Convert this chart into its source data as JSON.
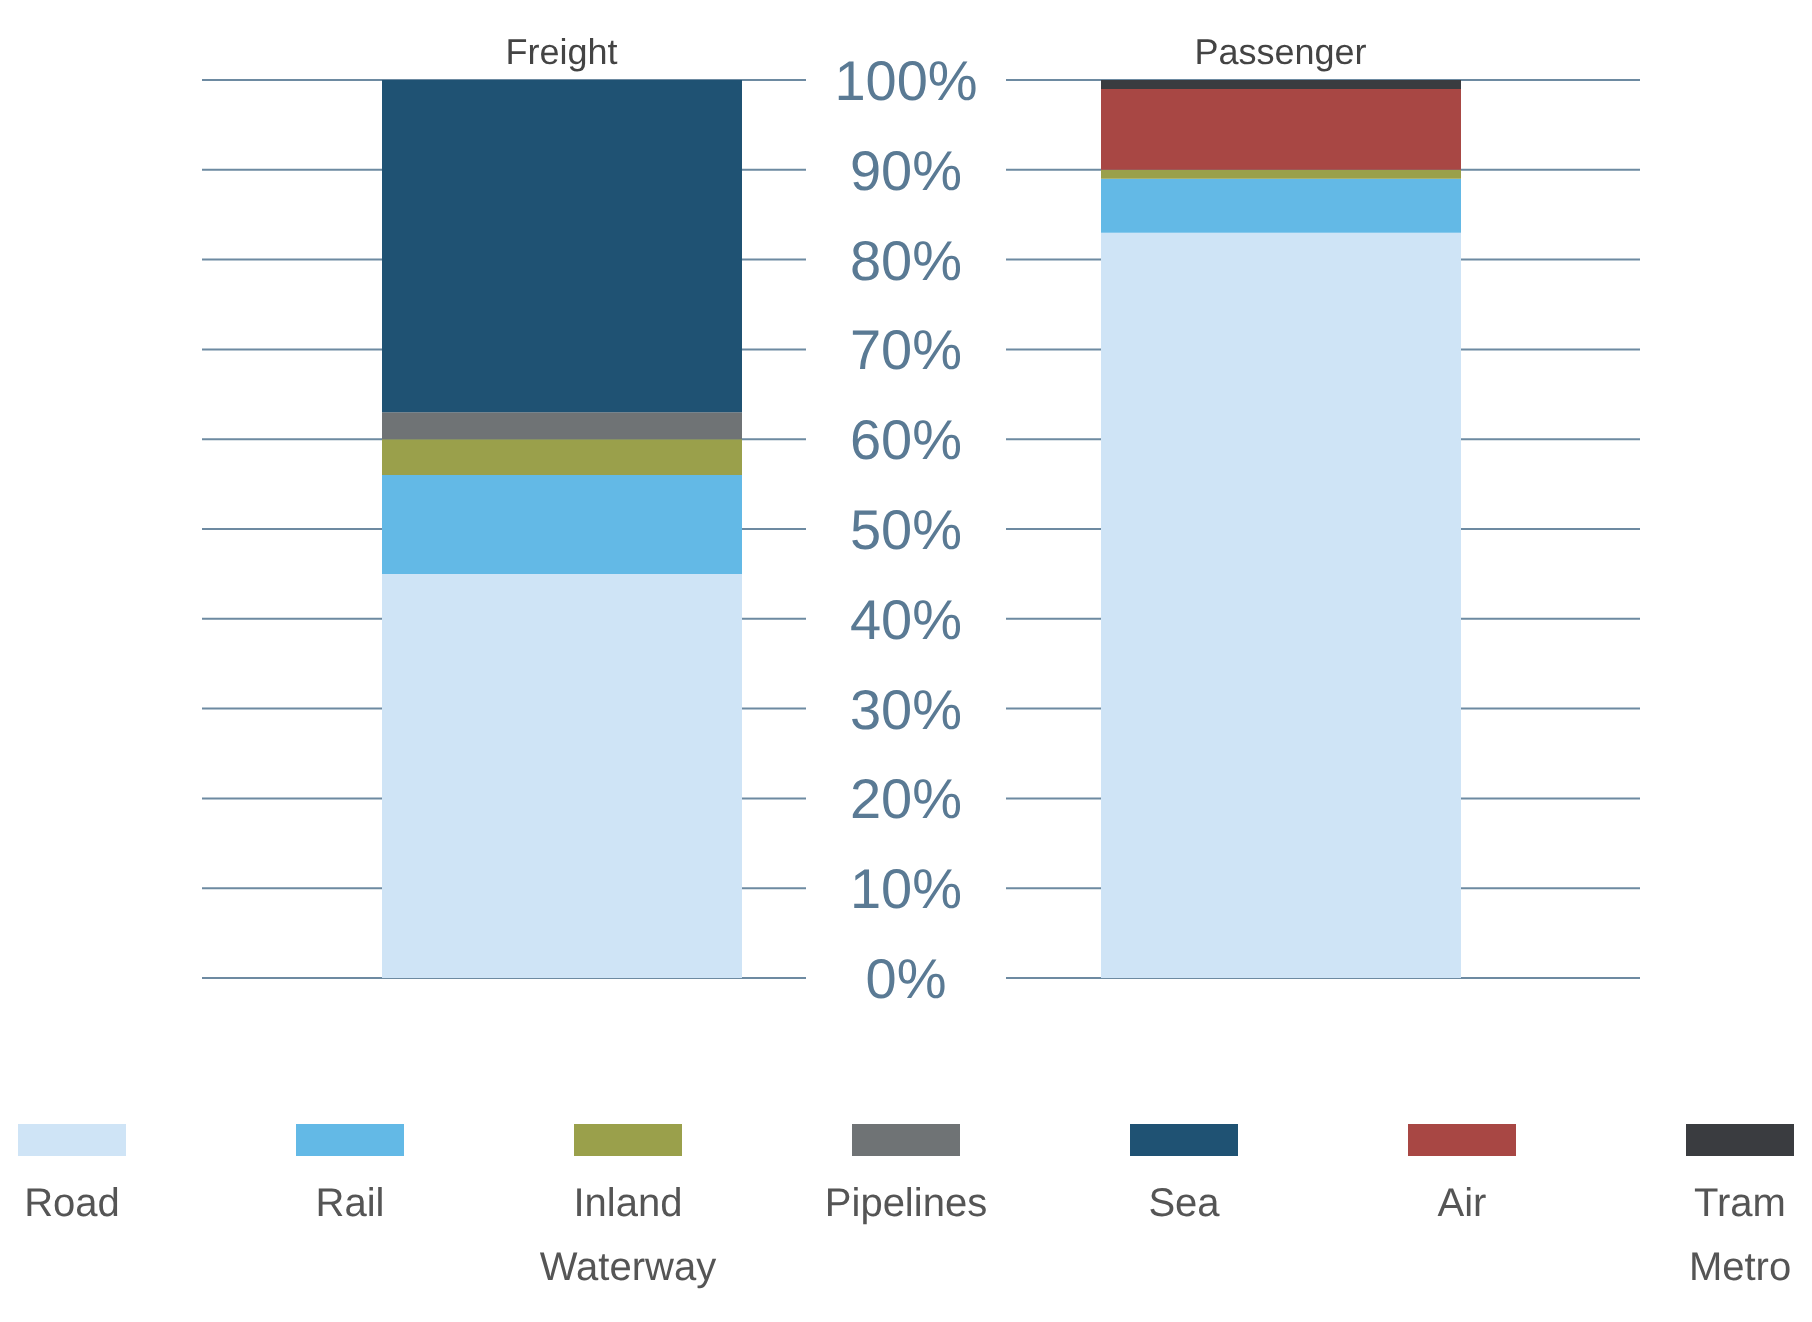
{
  "chart_data": {
    "type": "bar",
    "stacked": true,
    "categories": [
      "Freight",
      "Passenger"
    ],
    "series": [
      {
        "name": "Road",
        "color": "#cfe4f6",
        "values": [
          45,
          83
        ]
      },
      {
        "name": "Rail",
        "color": "#63b9e6",
        "values": [
          11,
          6
        ]
      },
      {
        "name": "Inland Waterway",
        "color": "#9aa04b",
        "values": [
          4,
          1
        ]
      },
      {
        "name": "Pipelines",
        "color": "#6f7375",
        "values": [
          3,
          0
        ]
      },
      {
        "name": "Sea",
        "color": "#1f5273",
        "values": [
          37,
          0
        ]
      },
      {
        "name": "Air",
        "color": "#a84744",
        "values": [
          0,
          9
        ]
      },
      {
        "name": "Tram Metro",
        "color": "#3a3c40",
        "values": [
          0,
          1
        ]
      }
    ],
    "ylim": [
      0,
      100
    ],
    "yticks": [
      {
        "value": 0,
        "label": "0%"
      },
      {
        "value": 10,
        "label": "10%"
      },
      {
        "value": 20,
        "label": "20%"
      },
      {
        "value": 30,
        "label": "30%"
      },
      {
        "value": 40,
        "label": "40%"
      },
      {
        "value": 50,
        "label": "50%"
      },
      {
        "value": 60,
        "label": "60%"
      },
      {
        "value": 70,
        "label": "70%"
      },
      {
        "value": 80,
        "label": "80%"
      },
      {
        "value": 90,
        "label": "90%"
      },
      {
        "value": 100,
        "label": "100%"
      }
    ],
    "grid": "y",
    "legend": "bottom"
  }
}
